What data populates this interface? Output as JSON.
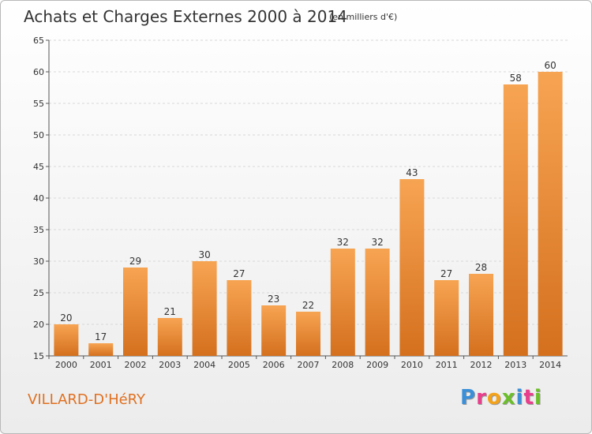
{
  "chart_data": {
    "type": "bar",
    "title": "Achats et Charges Externes 2000 à 2014",
    "subtitle": "(en milliers d'€)",
    "categories": [
      "2000",
      "2001",
      "2002",
      "2003",
      "2004",
      "2005",
      "2006",
      "2007",
      "2008",
      "2009",
      "2010",
      "2011",
      "2012",
      "2013",
      "2014"
    ],
    "values": [
      20,
      17,
      29,
      21,
      30,
      27,
      23,
      22,
      32,
      32,
      43,
      27,
      28,
      58,
      60
    ],
    "ylim": [
      15,
      65
    ],
    "yticks": [
      15,
      20,
      25,
      30,
      35,
      40,
      45,
      50,
      55,
      60,
      65
    ],
    "grid": true,
    "bar_color": "#f0892c"
  },
  "footer": {
    "commune": "VILLARD-D'HéRY",
    "logo_letters": [
      "P",
      "r",
      "o",
      "x",
      "i",
      "t",
      "i"
    ],
    "logo_colors": [
      "#3a8fd8",
      "#e83e8c",
      "#f3a31b",
      "#6cbf2a",
      "#3a8fd8",
      "#e83e8c",
      "#6cbf2a"
    ]
  }
}
